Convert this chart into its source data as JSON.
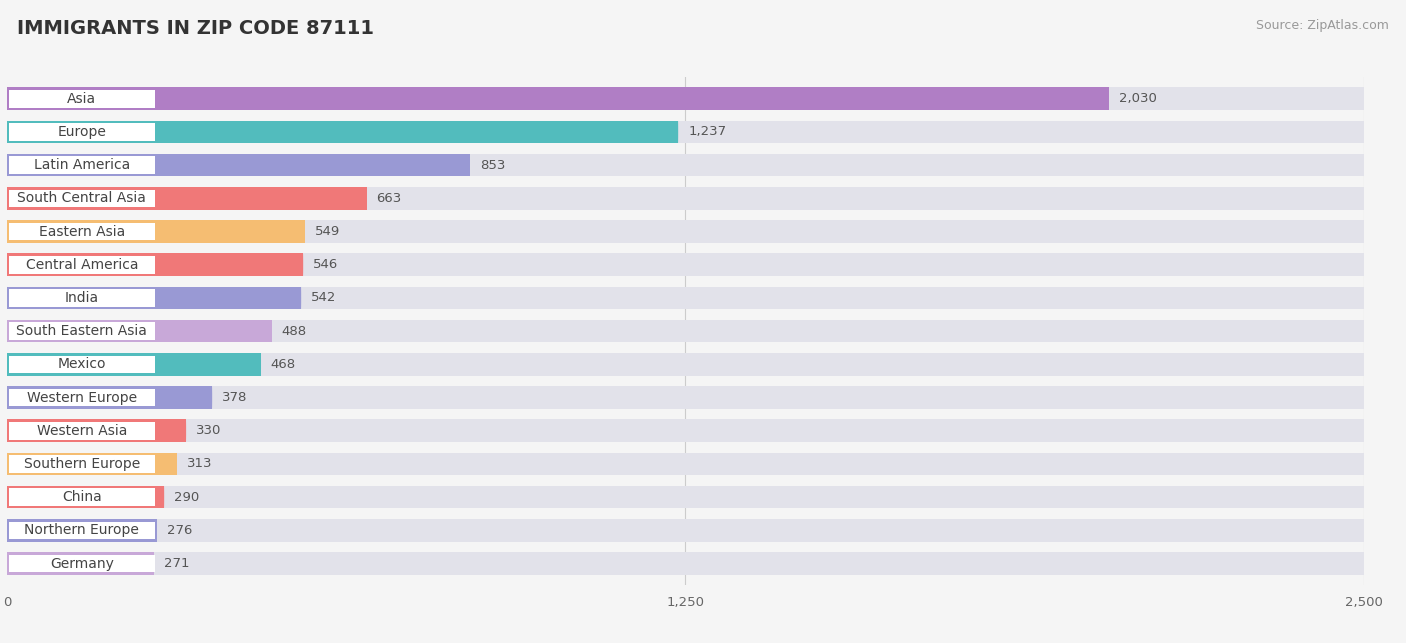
{
  "title": "IMMIGRANTS IN ZIP CODE 87111",
  "source": "Source: ZipAtlas.com",
  "categories": [
    "Asia",
    "Europe",
    "Latin America",
    "South Central Asia",
    "Eastern Asia",
    "Central America",
    "India",
    "South Eastern Asia",
    "Mexico",
    "Western Europe",
    "Western Asia",
    "Southern Europe",
    "China",
    "Northern Europe",
    "Germany"
  ],
  "values": [
    2030,
    1237,
    853,
    663,
    549,
    546,
    542,
    488,
    468,
    378,
    330,
    313,
    290,
    276,
    271
  ],
  "bar_colors": [
    "#b07ec5",
    "#52bcbd",
    "#9999d4",
    "#f07878",
    "#f5bd72",
    "#f07878",
    "#9999d4",
    "#c8a8d8",
    "#52bcbd",
    "#9999d4",
    "#f07878",
    "#f5bd72",
    "#f07878",
    "#9999d4",
    "#c8a8d8"
  ],
  "xlim": [
    0,
    2500
  ],
  "xticks": [
    0,
    1250,
    2500
  ],
  "background_color": "#f5f5f5",
  "bar_bg_color": "#e2e2ea",
  "title_fontsize": 14,
  "label_fontsize": 10,
  "value_fontsize": 9.5,
  "source_fontsize": 9
}
